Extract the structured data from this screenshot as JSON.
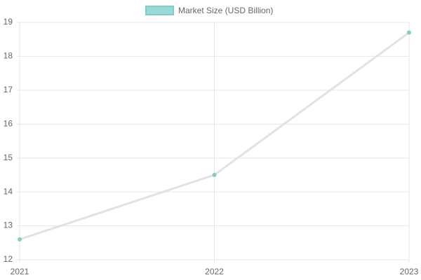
{
  "chart_data": {
    "type": "line",
    "categories": [
      "2021",
      "2022",
      "2023"
    ],
    "series": [
      {
        "name": "Market Size (USD Billion)",
        "color": "#7fcdc4",
        "line_color": "#e2e2e2",
        "values": [
          12.6,
          14.5,
          18.7
        ]
      }
    ],
    "ylim": [
      12,
      19
    ],
    "yticks": [
      12,
      13,
      14,
      15,
      16,
      17,
      18,
      19
    ],
    "grid": true,
    "legend": "top"
  }
}
